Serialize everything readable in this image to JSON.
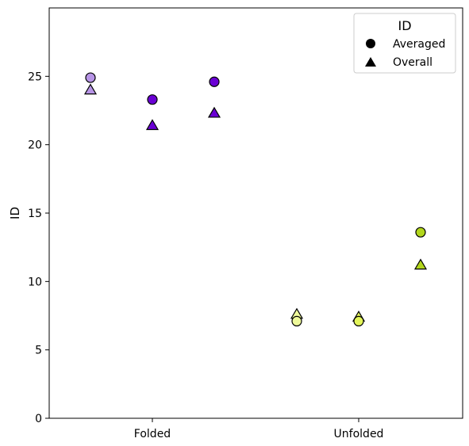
{
  "chart_data": {
    "type": "scatter",
    "title": "",
    "xlabel": "",
    "ylabel": "ID",
    "categories": [
      "Folded",
      "Unfolded"
    ],
    "ylim": [
      0,
      30
    ],
    "yticks": [
      "0",
      "5",
      "10",
      "15",
      "20",
      "25"
    ],
    "grid": false,
    "legend": {
      "title": "ID",
      "placement": "top-right",
      "entries": [
        {
          "label": "Averaged",
          "marker": "circle"
        },
        {
          "label": "Overall",
          "marker": "triangle"
        }
      ]
    },
    "groups": [
      {
        "category": "Folded",
        "offset": -1,
        "color": "#b794e6",
        "averaged": 24.9,
        "overall": 24.0
      },
      {
        "category": "Folded",
        "offset": 0,
        "color": "#6a00d4",
        "averaged": 23.3,
        "overall": 21.4
      },
      {
        "category": "Folded",
        "offset": 1,
        "color": "#6a00d4",
        "averaged": 24.6,
        "overall": 22.3
      },
      {
        "category": "Unfolded",
        "offset": -1,
        "color": "#eef99a",
        "averaged": 7.1,
        "overall": 7.6
      },
      {
        "category": "Unfolded",
        "offset": 0,
        "color": "#e3f55a",
        "averaged": 7.1,
        "overall": 7.4
      },
      {
        "category": "Unfolded",
        "offset": 1,
        "color": "#b2d61c",
        "averaged": 13.6,
        "overall": 11.2
      }
    ]
  }
}
